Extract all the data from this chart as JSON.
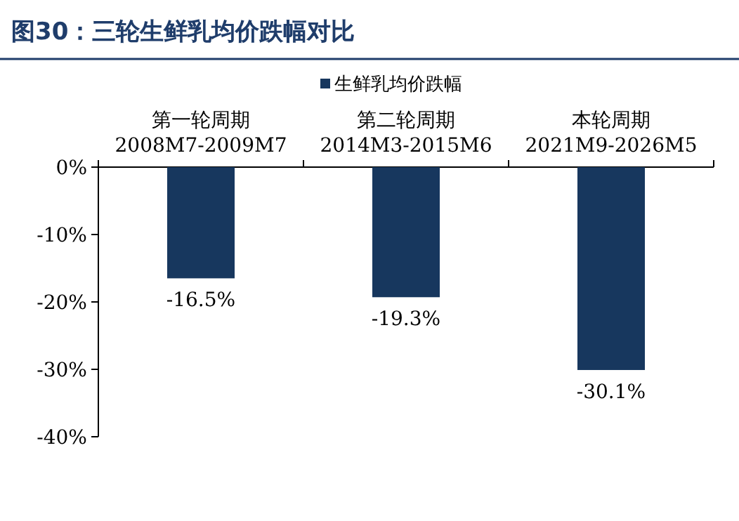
{
  "chart_data": {
    "type": "bar",
    "title": "图30：三轮生鲜乳均价跌幅对比",
    "categories": [
      "第一轮周期\n2008M7-2009M7",
      "第二轮周期\n2014M3-2015M6",
      "本轮周期\n2021M9-2026M5"
    ],
    "series": [
      {
        "name": "生鲜乳均价跌幅",
        "color": "#17375e",
        "values": [
          -16.5,
          -19.3,
          -30.1
        ],
        "value_labels": [
          "-16.5%",
          "-19.3%",
          "-30.1%"
        ]
      }
    ],
    "ylim": [
      -40,
      0
    ],
    "yticks": [
      {
        "value": -40,
        "label": "-40%"
      },
      {
        "value": -30,
        "label": "-30%"
      },
      {
        "value": -20,
        "label": "-20%"
      },
      {
        "value": -10,
        "label": "-10%"
      },
      {
        "value": 0,
        "label": "0%"
      }
    ],
    "legend": "top"
  }
}
